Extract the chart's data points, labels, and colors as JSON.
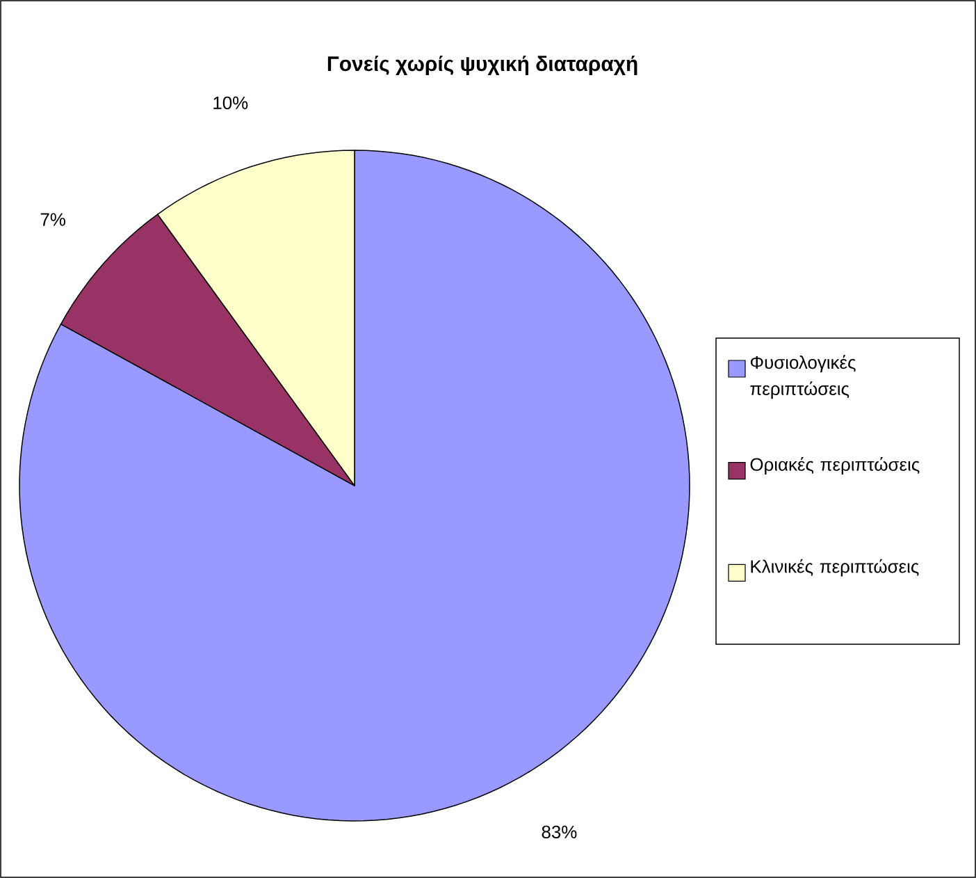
{
  "chart_data": {
    "type": "pie",
    "title": "Γονείς χωρίς ψυχική διαταραχή",
    "categories": [
      "Φυσιολογικές περιπτώσεις",
      "Οριακές περιπτώσεις",
      "Κλινικές περιπτώσεις"
    ],
    "values": [
      83,
      7,
      10
    ],
    "colors": [
      "#9999ff",
      "#993366",
      "#ffffcc"
    ],
    "value_labels": [
      "83%",
      "7%",
      "10%"
    ],
    "legend": "right"
  }
}
